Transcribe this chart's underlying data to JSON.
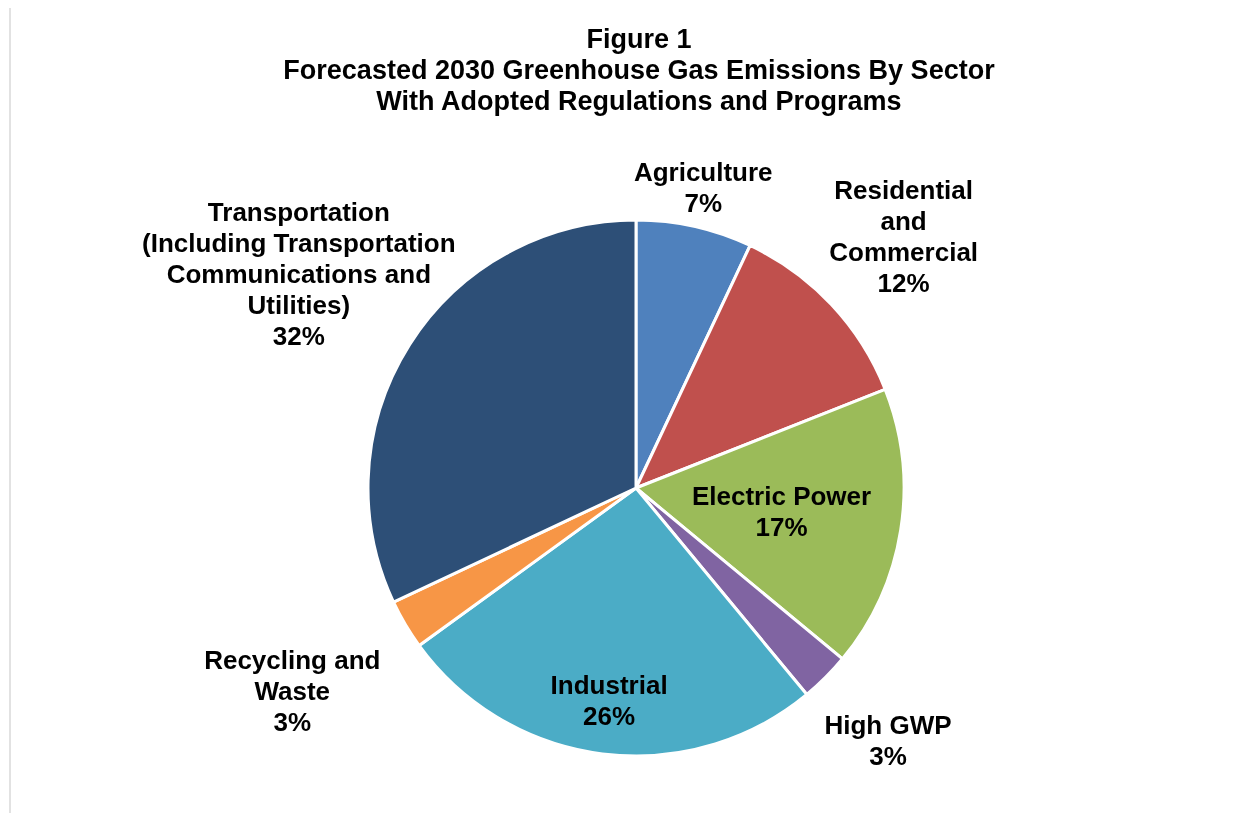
{
  "chart_data": {
    "type": "pie",
    "title": "Figure 1\nForecasted 2030 Greenhouse Gas Emissions By Sector\nWith Adopted Regulations and Programs",
    "categories": [
      "Agriculture",
      "Residential\nand\nCommercial",
      "Electric Power",
      "High GWP",
      "Industrial",
      "Recycling and\nWaste",
      "Transportation\n(Including Transportation\nCommunications and\nUtilities)"
    ],
    "values": [
      7,
      12,
      17,
      3,
      26,
      3,
      32
    ],
    "value_labels": [
      "7%",
      "12%",
      "17%",
      "3%",
      "26%",
      "3%",
      "32%"
    ],
    "colors": [
      "#4f81bd",
      "#c0504d",
      "#9bbb59",
      "#8064a2",
      "#4bacc6",
      "#f79646",
      "#2d4f77"
    ]
  }
}
